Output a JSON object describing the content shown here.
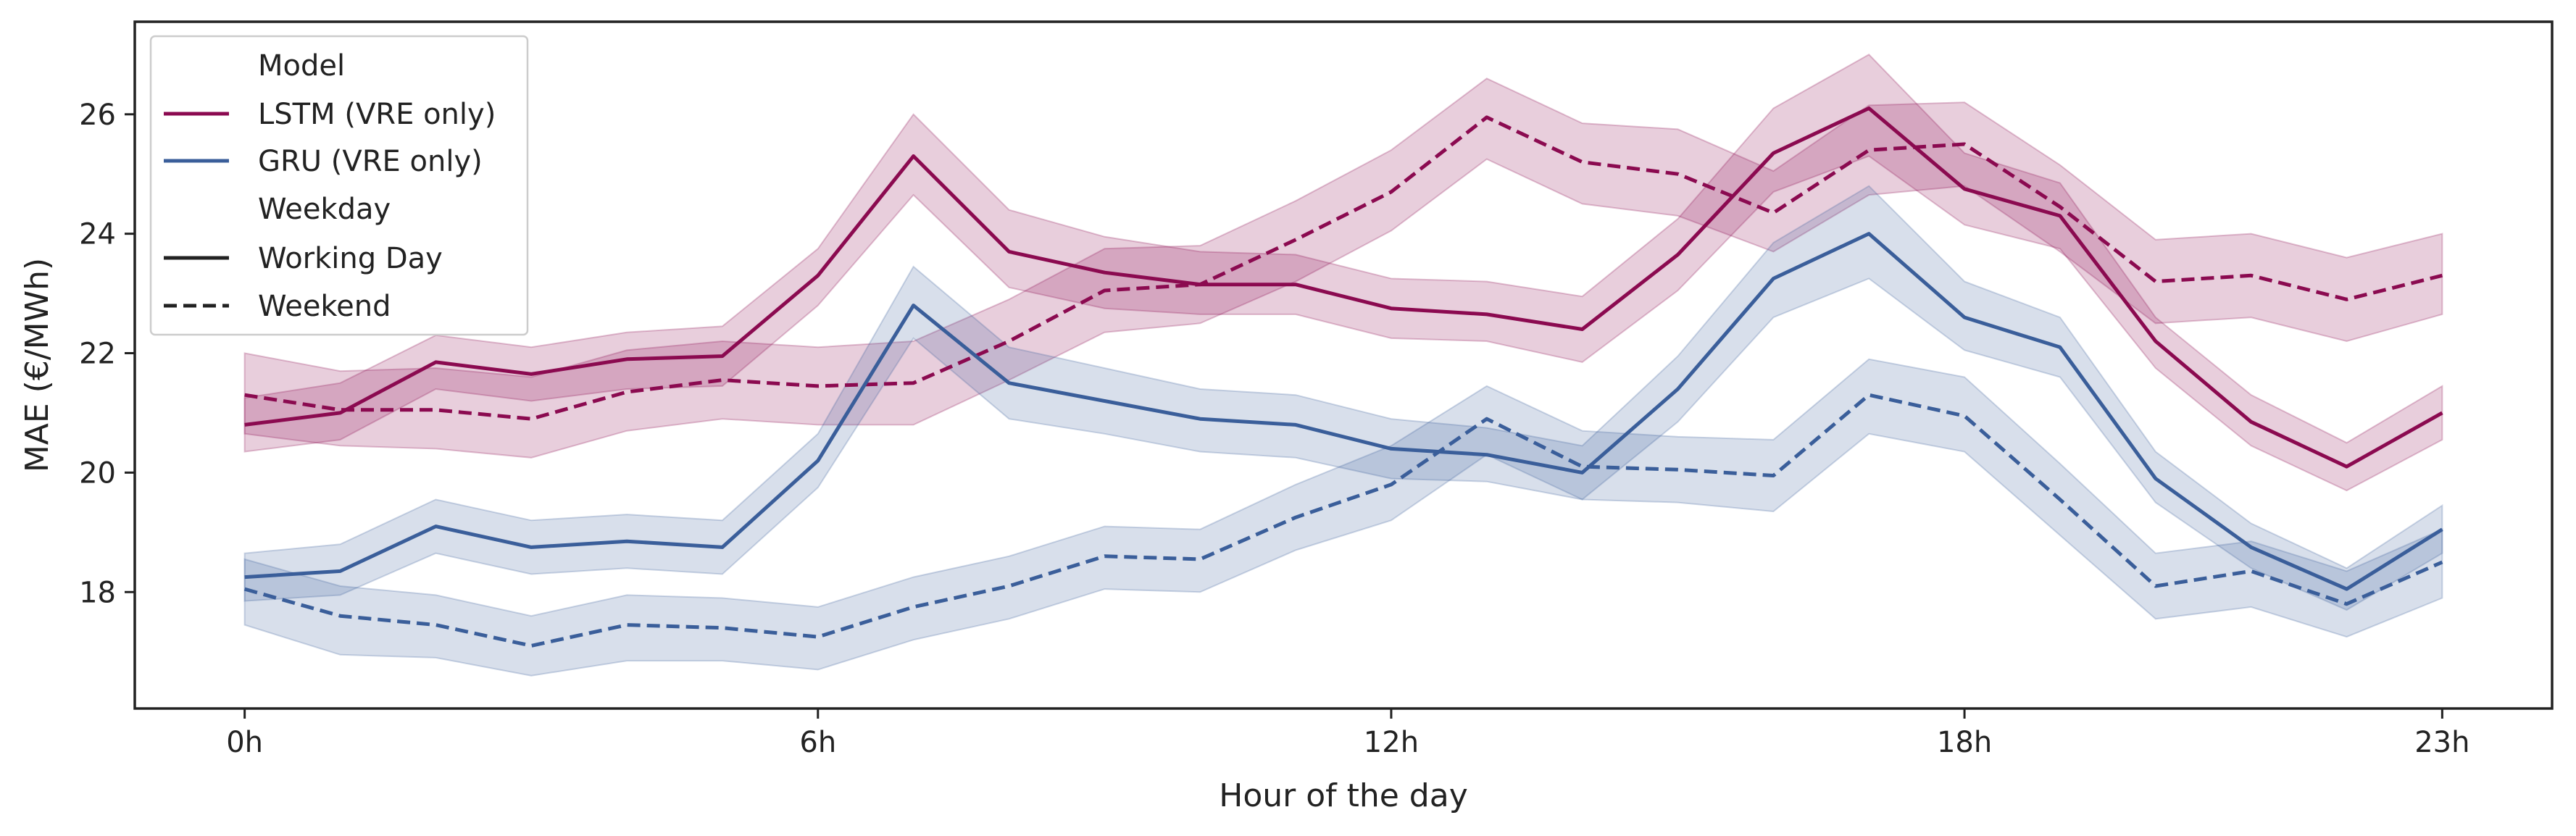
{
  "chart_data": {
    "type": "line",
    "title": "",
    "xlabel": "Hour of the day",
    "ylabel": "MAE (€/MWh)",
    "x": [
      0,
      1,
      2,
      3,
      4,
      5,
      6,
      7,
      8,
      9,
      10,
      11,
      12,
      13,
      14,
      15,
      16,
      17,
      18,
      19,
      20,
      21,
      22,
      23
    ],
    "xticks": [
      0,
      6,
      12,
      18,
      23
    ],
    "xtick_labels": [
      "0h",
      "6h",
      "12h",
      "18h",
      "23h"
    ],
    "xlim": [
      -1.15,
      24.15
    ],
    "yticks": [
      18,
      20,
      22,
      24,
      26
    ],
    "ylim": [
      16.05,
      27.55
    ],
    "grid": false,
    "legend_position": "top-left",
    "colors": {
      "lstm": "#8b0a50",
      "gru": "#3a5e9a"
    },
    "legend": {
      "model_title": "Model",
      "lstm_label": "LSTM (VRE only)",
      "gru_label": "GRU (VRE only)",
      "weekday_title": "Weekday",
      "working_label": "Working Day",
      "weekend_label": "Weekend"
    },
    "series": [
      {
        "model": "lstm",
        "weekday": "working",
        "values": [
          20.8,
          21.0,
          21.85,
          21.65,
          21.9,
          21.95,
          23.3,
          25.3,
          23.7,
          23.35,
          23.15,
          23.15,
          22.75,
          22.65,
          22.4,
          23.65,
          25.35,
          26.1,
          24.75,
          24.3,
          22.2,
          20.85,
          20.1,
          21.0
        ],
        "lower": [
          20.35,
          20.55,
          21.4,
          21.2,
          21.4,
          21.45,
          22.8,
          24.65,
          23.1,
          22.75,
          22.65,
          22.65,
          22.25,
          22.2,
          21.85,
          23.05,
          24.7,
          25.3,
          24.15,
          23.75,
          21.75,
          20.45,
          19.7,
          20.55
        ],
        "upper": [
          21.25,
          21.5,
          22.3,
          22.1,
          22.35,
          22.45,
          23.75,
          26.0,
          24.4,
          23.95,
          23.7,
          23.65,
          23.25,
          23.2,
          22.95,
          24.25,
          26.1,
          27.0,
          25.35,
          24.85,
          22.6,
          21.3,
          20.5,
          21.45
        ]
      },
      {
        "model": "lstm",
        "weekday": "weekend",
        "values": [
          21.3,
          21.05,
          21.05,
          20.9,
          21.35,
          21.55,
          21.45,
          21.5,
          22.2,
          23.05,
          23.15,
          23.9,
          24.7,
          25.95,
          25.2,
          25.0,
          24.35,
          25.4,
          25.5,
          24.45,
          23.2,
          23.3,
          22.9,
          23.3
        ],
        "lower": [
          20.65,
          20.45,
          20.4,
          20.25,
          20.7,
          20.9,
          20.8,
          20.8,
          21.55,
          22.35,
          22.5,
          23.2,
          24.05,
          25.25,
          24.5,
          24.3,
          23.7,
          24.65,
          24.8,
          23.7,
          22.5,
          22.6,
          22.2,
          22.65
        ],
        "upper": [
          22.0,
          21.7,
          21.75,
          21.6,
          22.05,
          22.2,
          22.1,
          22.2,
          22.9,
          23.75,
          23.8,
          24.55,
          25.4,
          26.6,
          25.85,
          25.75,
          25.05,
          26.15,
          26.2,
          25.15,
          23.9,
          24.0,
          23.6,
          24.0
        ]
      },
      {
        "model": "gru",
        "weekday": "working",
        "values": [
          18.25,
          18.35,
          19.1,
          18.75,
          18.85,
          18.75,
          20.2,
          22.8,
          21.5,
          21.2,
          20.9,
          20.8,
          20.4,
          20.3,
          20.0,
          21.4,
          23.25,
          24.0,
          22.6,
          22.1,
          19.9,
          18.75,
          18.05,
          19.05
        ],
        "lower": [
          17.85,
          17.95,
          18.65,
          18.3,
          18.4,
          18.3,
          19.75,
          22.25,
          20.9,
          20.65,
          20.35,
          20.25,
          19.9,
          19.85,
          19.55,
          20.85,
          22.6,
          23.25,
          22.05,
          21.6,
          19.5,
          18.4,
          17.7,
          18.65
        ],
        "upper": [
          18.65,
          18.8,
          19.55,
          19.2,
          19.3,
          19.2,
          20.65,
          23.45,
          22.1,
          21.75,
          21.4,
          21.3,
          20.9,
          20.75,
          20.45,
          21.95,
          23.85,
          24.8,
          23.2,
          22.6,
          20.35,
          19.15,
          18.4,
          19.45
        ]
      },
      {
        "model": "gru",
        "weekday": "weekend",
        "values": [
          18.05,
          17.6,
          17.45,
          17.1,
          17.45,
          17.4,
          17.25,
          17.75,
          18.1,
          18.6,
          18.55,
          19.25,
          19.8,
          20.9,
          20.1,
          20.05,
          19.95,
          21.3,
          20.95,
          19.55,
          18.1,
          18.35,
          17.8,
          18.5
        ],
        "lower": [
          17.45,
          16.95,
          16.9,
          16.6,
          16.85,
          16.85,
          16.7,
          17.2,
          17.55,
          18.05,
          18.0,
          18.7,
          19.2,
          20.3,
          19.55,
          19.5,
          19.35,
          20.65,
          20.35,
          18.95,
          17.55,
          17.75,
          17.25,
          17.9
        ],
        "upper": [
          18.55,
          18.1,
          17.95,
          17.6,
          17.95,
          17.9,
          17.75,
          18.25,
          18.6,
          19.1,
          19.05,
          19.8,
          20.45,
          21.45,
          20.7,
          20.6,
          20.55,
          21.9,
          21.6,
          20.15,
          18.65,
          18.85,
          18.35,
          19.05
        ]
      }
    ]
  }
}
